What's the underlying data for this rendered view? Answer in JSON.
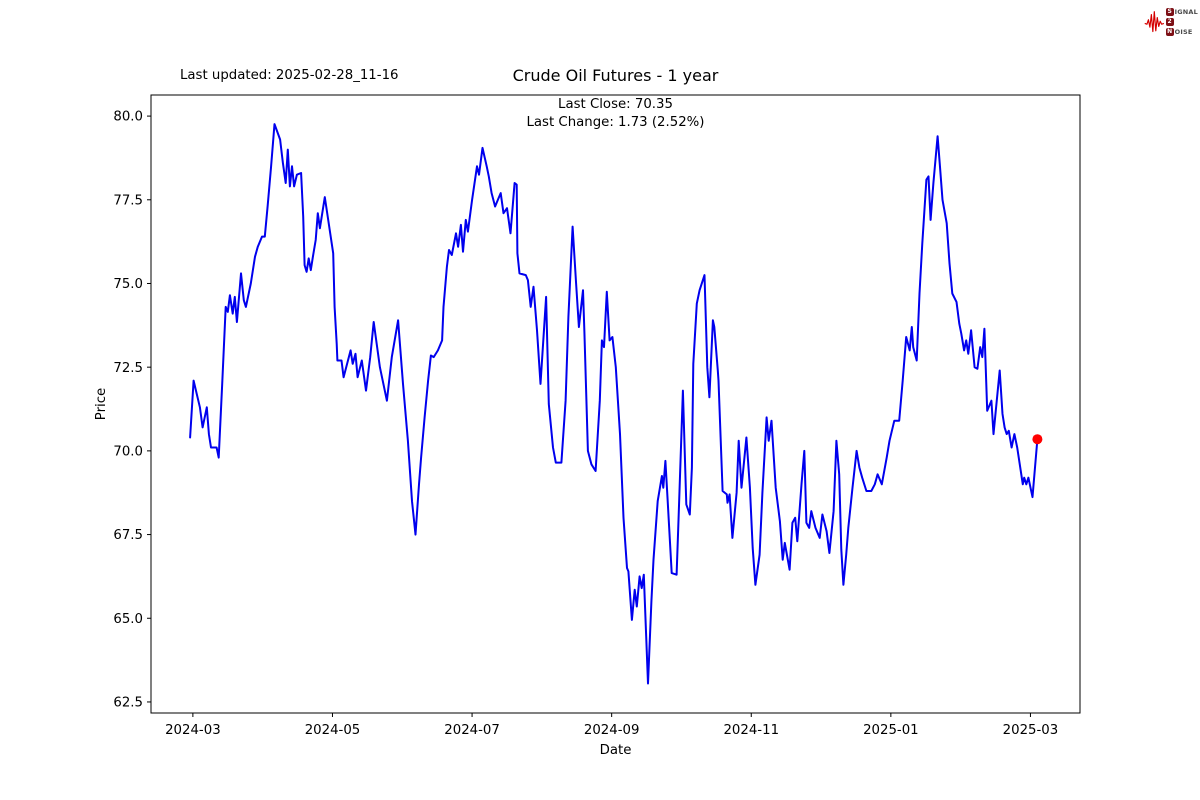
{
  "header": {
    "last_updated": "Last updated: 2025-02-28_11-16",
    "logo": {
      "rows": [
        {
          "badge": "S",
          "rest": "IGNAL"
        },
        {
          "badge": "2",
          "rest": ""
        },
        {
          "badge": "N",
          "rest": "OISE"
        }
      ]
    }
  },
  "chart": {
    "title": "Crude Oil Futures - 1 year",
    "subtitle_line1": "Last Close: 70.35",
    "subtitle_line2": "Last Change: 1.73 (2.52%)",
    "xlabel": "Date",
    "ylabel": "Price"
  },
  "chart_data": {
    "type": "line",
    "title": "Crude Oil Futures - 1 year",
    "xlabel": "Date",
    "ylabel": "Price",
    "last_close": 70.35,
    "last_change": "1.73 (2.52%)",
    "last_updated": "2025-02-28_11-16",
    "line_color": "#0000ee",
    "marker_color": "#ff0000",
    "x_unit": "months since 2024-03-01",
    "xlim": [
      -0.6,
      12.71
    ],
    "ylim": [
      62.17,
      80.63
    ],
    "grid": false,
    "legend": "none",
    "x_ticks": {
      "positions": [
        0,
        2,
        4,
        6,
        8,
        10,
        12
      ],
      "labels": [
        "2024-03",
        "2024-05",
        "2024-07",
        "2024-09",
        "2024-11",
        "2025-01",
        "2025-03"
      ]
    },
    "y_ticks": {
      "positions": [
        62.5,
        65.0,
        67.5,
        70.0,
        72.5,
        75.0,
        77.5,
        80.0
      ],
      "labels": [
        "62.5",
        "65.0",
        "67.5",
        "70.0",
        "72.5",
        "75.0",
        "77.5",
        "80.0"
      ]
    },
    "last_point": [
      12.1,
      70.35
    ],
    "series": [
      {
        "name": "Crude Oil Futures",
        "points": [
          [
            -0.04,
            70.4
          ],
          [
            0.01,
            72.1
          ],
          [
            0.1,
            71.3
          ],
          [
            0.14,
            70.7
          ],
          [
            0.2,
            71.3
          ],
          [
            0.23,
            70.5
          ],
          [
            0.26,
            70.1
          ],
          [
            0.34,
            70.1
          ],
          [
            0.37,
            69.8
          ],
          [
            0.42,
            72.0
          ],
          [
            0.47,
            74.3
          ],
          [
            0.5,
            74.15
          ],
          [
            0.53,
            74.65
          ],
          [
            0.57,
            74.1
          ],
          [
            0.6,
            74.6
          ],
          [
            0.63,
            73.85
          ],
          [
            0.69,
            75.3
          ],
          [
            0.73,
            74.5
          ],
          [
            0.76,
            74.3
          ],
          [
            0.83,
            75.0
          ],
          [
            0.89,
            75.8
          ],
          [
            0.93,
            76.1
          ],
          [
            0.99,
            76.4
          ],
          [
            1.03,
            76.4
          ],
          [
            1.07,
            77.3
          ],
          [
            1.12,
            78.5
          ],
          [
            1.17,
            79.76
          ],
          [
            1.25,
            79.3
          ],
          [
            1.29,
            78.6
          ],
          [
            1.33,
            78.0
          ],
          [
            1.36,
            79.0
          ],
          [
            1.39,
            77.9
          ],
          [
            1.42,
            78.5
          ],
          [
            1.45,
            77.9
          ],
          [
            1.49,
            78.25
          ],
          [
            1.55,
            78.3
          ],
          [
            1.58,
            77.0
          ],
          [
            1.6,
            75.55
          ],
          [
            1.63,
            75.35
          ],
          [
            1.66,
            75.75
          ],
          [
            1.69,
            75.4
          ],
          [
            1.72,
            75.8
          ],
          [
            1.76,
            76.3
          ],
          [
            1.79,
            77.1
          ],
          [
            1.82,
            76.65
          ],
          [
            1.89,
            77.58
          ],
          [
            1.96,
            76.6
          ],
          [
            2.01,
            75.9
          ],
          [
            2.03,
            74.3
          ],
          [
            2.06,
            73.2
          ],
          [
            2.07,
            72.7
          ],
          [
            2.13,
            72.7
          ],
          [
            2.16,
            72.2
          ],
          [
            2.26,
            73.0
          ],
          [
            2.29,
            72.6
          ],
          [
            2.33,
            72.9
          ],
          [
            2.36,
            72.2
          ],
          [
            2.42,
            72.7
          ],
          [
            2.48,
            71.8
          ],
          [
            2.54,
            72.8
          ],
          [
            2.59,
            73.85
          ],
          [
            2.68,
            72.5
          ],
          [
            2.78,
            71.5
          ],
          [
            2.85,
            72.8
          ],
          [
            2.94,
            73.9
          ],
          [
            3.01,
            72.0
          ],
          [
            3.08,
            70.3
          ],
          [
            3.14,
            68.5
          ],
          [
            3.19,
            67.5
          ],
          [
            3.24,
            69.0
          ],
          [
            3.27,
            69.8
          ],
          [
            3.32,
            71.0
          ],
          [
            3.37,
            72.1
          ],
          [
            3.41,
            72.85
          ],
          [
            3.45,
            72.8
          ],
          [
            3.51,
            73.0
          ],
          [
            3.57,
            73.3
          ],
          [
            3.59,
            74.3
          ],
          [
            3.64,
            75.5
          ],
          [
            3.67,
            76.0
          ],
          [
            3.71,
            75.85
          ],
          [
            3.77,
            76.5
          ],
          [
            3.8,
            76.1
          ],
          [
            3.84,
            76.75
          ],
          [
            3.87,
            75.95
          ],
          [
            3.91,
            76.9
          ],
          [
            3.94,
            76.55
          ],
          [
            4.0,
            77.5
          ],
          [
            4.07,
            78.5
          ],
          [
            4.1,
            78.25
          ],
          [
            4.15,
            79.05
          ],
          [
            4.21,
            78.5
          ],
          [
            4.24,
            78.2
          ],
          [
            4.28,
            77.7
          ],
          [
            4.33,
            77.3
          ],
          [
            4.37,
            77.5
          ],
          [
            4.41,
            77.7
          ],
          [
            4.45,
            77.1
          ],
          [
            4.5,
            77.25
          ],
          [
            4.55,
            76.5
          ],
          [
            4.61,
            78.0
          ],
          [
            4.64,
            77.95
          ],
          [
            4.65,
            75.9
          ],
          [
            4.68,
            75.3
          ],
          [
            4.77,
            75.25
          ],
          [
            4.8,
            75.1
          ],
          [
            4.84,
            74.3
          ],
          [
            4.88,
            74.9
          ],
          [
            4.93,
            73.6
          ],
          [
            4.98,
            72.0
          ],
          [
            5.06,
            74.6
          ],
          [
            5.1,
            71.4
          ],
          [
            5.16,
            70.1
          ],
          [
            5.2,
            69.65
          ],
          [
            5.28,
            69.65
          ],
          [
            5.34,
            71.5
          ],
          [
            5.38,
            74.0
          ],
          [
            5.44,
            76.7
          ],
          [
            5.49,
            75.0
          ],
          [
            5.53,
            73.7
          ],
          [
            5.59,
            74.8
          ],
          [
            5.61,
            73.55
          ],
          [
            5.66,
            70.0
          ],
          [
            5.71,
            69.6
          ],
          [
            5.77,
            69.4
          ],
          [
            5.83,
            71.5
          ],
          [
            5.86,
            73.3
          ],
          [
            5.89,
            73.1
          ],
          [
            5.93,
            74.75
          ],
          [
            5.97,
            73.3
          ],
          [
            6.01,
            73.4
          ],
          [
            6.06,
            72.5
          ],
          [
            6.12,
            70.5
          ],
          [
            6.17,
            68.0
          ],
          [
            6.22,
            66.5
          ],
          [
            6.24,
            66.4
          ],
          [
            6.29,
            64.95
          ],
          [
            6.33,
            65.85
          ],
          [
            6.36,
            65.35
          ],
          [
            6.4,
            66.25
          ],
          [
            6.43,
            65.9
          ],
          [
            6.46,
            66.3
          ],
          [
            6.52,
            63.05
          ],
          [
            6.57,
            65.5
          ],
          [
            6.6,
            66.75
          ],
          [
            6.66,
            68.5
          ],
          [
            6.72,
            69.25
          ],
          [
            6.74,
            68.9
          ],
          [
            6.77,
            69.7
          ],
          [
            6.8,
            68.6
          ],
          [
            6.86,
            66.35
          ],
          [
            6.93,
            66.3
          ],
          [
            6.96,
            68.1
          ],
          [
            7.02,
            71.8
          ],
          [
            7.07,
            68.4
          ],
          [
            7.12,
            68.1
          ],
          [
            7.15,
            69.5
          ],
          [
            7.17,
            72.6
          ],
          [
            7.22,
            74.4
          ],
          [
            7.26,
            74.8
          ],
          [
            7.33,
            75.25
          ],
          [
            7.37,
            72.5
          ],
          [
            7.4,
            71.6
          ],
          [
            7.45,
            73.9
          ],
          [
            7.47,
            73.7
          ],
          [
            7.52,
            72.4
          ],
          [
            7.53,
            72.1
          ],
          [
            7.59,
            68.8
          ],
          [
            7.65,
            68.7
          ],
          [
            7.66,
            68.45
          ],
          [
            7.69,
            68.7
          ],
          [
            7.73,
            67.4
          ],
          [
            7.79,
            68.75
          ],
          [
            7.82,
            70.3
          ],
          [
            7.86,
            68.9
          ],
          [
            7.93,
            70.4
          ],
          [
            7.98,
            68.9
          ],
          [
            8.02,
            67.1
          ],
          [
            8.06,
            66.0
          ],
          [
            8.12,
            66.9
          ],
          [
            8.16,
            68.75
          ],
          [
            8.22,
            71.0
          ],
          [
            8.25,
            70.3
          ],
          [
            8.29,
            70.9
          ],
          [
            8.35,
            68.9
          ],
          [
            8.41,
            67.9
          ],
          [
            8.45,
            66.75
          ],
          [
            8.48,
            67.25
          ],
          [
            8.55,
            66.45
          ],
          [
            8.59,
            67.85
          ],
          [
            8.63,
            68.0
          ],
          [
            8.66,
            67.3
          ],
          [
            8.72,
            69.0
          ],
          [
            8.76,
            70.0
          ],
          [
            8.79,
            67.85
          ],
          [
            8.83,
            67.7
          ],
          [
            8.86,
            68.2
          ],
          [
            8.92,
            67.7
          ],
          [
            8.98,
            67.4
          ],
          [
            9.02,
            68.1
          ],
          [
            9.08,
            67.6
          ],
          [
            9.12,
            66.95
          ],
          [
            9.18,
            68.2
          ],
          [
            9.22,
            70.3
          ],
          [
            9.26,
            69.3
          ],
          [
            9.29,
            67.05
          ],
          [
            9.32,
            66.0
          ],
          [
            9.36,
            66.9
          ],
          [
            9.39,
            67.7
          ],
          [
            9.45,
            68.9
          ],
          [
            9.51,
            70.0
          ],
          [
            9.55,
            69.5
          ],
          [
            9.59,
            69.2
          ],
          [
            9.65,
            68.8
          ],
          [
            9.72,
            68.8
          ],
          [
            9.77,
            69.0
          ],
          [
            9.81,
            69.3
          ],
          [
            9.87,
            69.0
          ],
          [
            9.94,
            69.8
          ],
          [
            9.98,
            70.3
          ],
          [
            10.05,
            70.9
          ],
          [
            10.12,
            70.9
          ],
          [
            10.17,
            72.1
          ],
          [
            10.22,
            73.4
          ],
          [
            10.27,
            73.0
          ],
          [
            10.3,
            73.7
          ],
          [
            10.32,
            73.1
          ],
          [
            10.37,
            72.7
          ],
          [
            10.41,
            74.7
          ],
          [
            10.45,
            76.2
          ],
          [
            10.51,
            78.1
          ],
          [
            10.54,
            78.2
          ],
          [
            10.57,
            76.9
          ],
          [
            10.61,
            78.0
          ],
          [
            10.67,
            79.4
          ],
          [
            10.7,
            78.6
          ],
          [
            10.74,
            77.5
          ],
          [
            10.8,
            76.8
          ],
          [
            10.84,
            75.6
          ],
          [
            10.88,
            74.7
          ],
          [
            10.94,
            74.45
          ],
          [
            10.98,
            73.8
          ],
          [
            11.01,
            73.5
          ],
          [
            11.05,
            73.0
          ],
          [
            11.08,
            73.3
          ],
          [
            11.11,
            72.9
          ],
          [
            11.15,
            73.6
          ],
          [
            11.2,
            72.5
          ],
          [
            11.24,
            72.45
          ],
          [
            11.28,
            73.1
          ],
          [
            11.31,
            72.8
          ],
          [
            11.34,
            73.65
          ],
          [
            11.38,
            71.2
          ],
          [
            11.44,
            71.5
          ],
          [
            11.47,
            70.5
          ],
          [
            11.56,
            72.4
          ],
          [
            11.6,
            71.1
          ],
          [
            11.63,
            70.7
          ],
          [
            11.66,
            70.5
          ],
          [
            11.69,
            70.6
          ],
          [
            11.73,
            70.1
          ],
          [
            11.77,
            70.5
          ],
          [
            11.81,
            70.1
          ],
          [
            11.89,
            69.0
          ],
          [
            11.91,
            69.2
          ],
          [
            11.94,
            69.0
          ],
          [
            11.97,
            69.2
          ],
          [
            12.03,
            68.62
          ],
          [
            12.1,
            70.35
          ]
        ]
      }
    ]
  }
}
